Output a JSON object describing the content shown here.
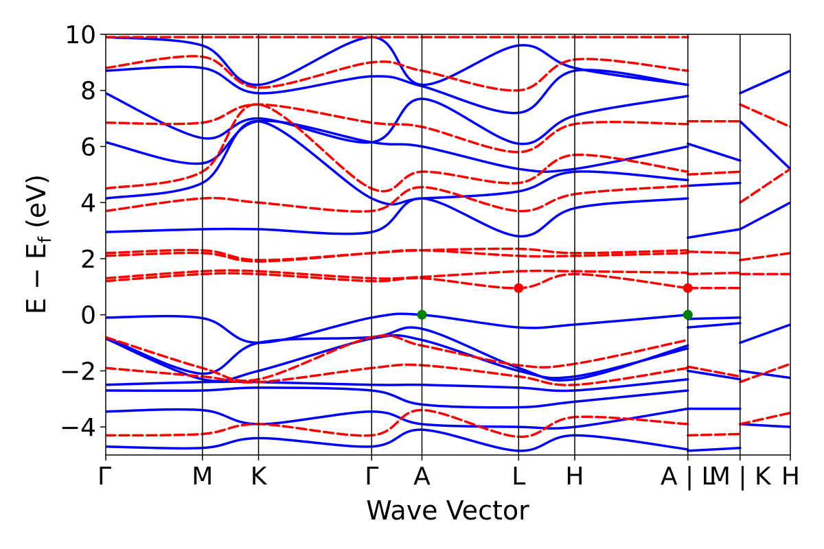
{
  "chart_data": {
    "type": "line",
    "xlabel": "Wave Vector",
    "ylabel": "E − E",
    "ylabel_subscript": "f",
    "ylabel_unit": " (eV)",
    "ylim": [
      -5,
      10
    ],
    "yticks": [
      -4,
      -2,
      0,
      2,
      4,
      6,
      8,
      10
    ],
    "ytick_labels": [
      "−4",
      "−2",
      "0",
      "2",
      "4",
      "6",
      "8",
      "10"
    ],
    "kpath": [
      {
        "label": "Γ",
        "x": 0.0
      },
      {
        "label": "M",
        "x": 1.0
      },
      {
        "label": "K",
        "x": 1.58
      },
      {
        "label": "Γ",
        "x": 2.75
      },
      {
        "label": "A",
        "x": 3.27
      },
      {
        "label": "L",
        "x": 4.27
      },
      {
        "label": "H",
        "x": 4.85
      },
      {
        "label": "A | L",
        "x": 6.02
      },
      {
        "label": "M | K",
        "x": 6.56
      },
      {
        "label": "H",
        "x": 7.08
      }
    ],
    "xlim": [
      0.0,
      7.08
    ],
    "grid": false,
    "series": [
      {
        "style": "solid",
        "color": "#0000ff",
        "bands": [
          {
            "x": [
              0,
              1.0,
              1.58,
              2.75,
              3.27,
              4.27,
              4.85,
              6.02
            ],
            "y": [
              -0.1,
              -0.12,
              -1.0,
              -0.1,
              0.0,
              -0.45,
              -0.35,
              0.0
            ]
          },
          {
            "x": [
              0,
              1.0,
              1.58,
              2.75,
              3.27,
              4.27,
              4.85,
              6.02
            ],
            "y": [
              -0.8,
              -2.1,
              -1.0,
              -0.8,
              -0.5,
              -1.9,
              -2.3,
              -1.1
            ]
          },
          {
            "x": [
              0,
              1.0,
              1.58,
              2.75,
              3.27,
              4.27,
              4.85,
              6.02
            ],
            "y": [
              -0.85,
              -2.3,
              -2.0,
              -0.85,
              -0.9,
              -2.0,
              -2.2,
              -1.2
            ]
          },
          {
            "x": [
              0,
              1.0,
              1.58,
              2.75,
              3.27,
              4.27,
              4.85,
              6.02
            ],
            "y": [
              -2.5,
              -2.4,
              -2.4,
              -2.5,
              -2.5,
              -2.6,
              -2.7,
              -2.3
            ]
          },
          {
            "x": [
              0,
              1.0,
              1.58,
              2.75,
              3.27,
              4.27,
              4.85,
              6.02
            ],
            "y": [
              -2.7,
              -2.7,
              -2.6,
              -2.7,
              -3.2,
              -3.3,
              -3.1,
              -2.7
            ]
          },
          {
            "x": [
              0,
              1.0,
              1.58,
              2.75,
              3.27,
              4.27,
              4.85,
              6.02
            ],
            "y": [
              -3.45,
              -3.4,
              -3.9,
              -3.45,
              -3.9,
              -4.0,
              -4.0,
              -3.35
            ]
          },
          {
            "x": [
              0,
              1.0,
              1.58,
              2.75,
              3.27,
              4.27,
              4.85,
              6.02
            ],
            "y": [
              -4.7,
              -4.75,
              -4.4,
              -4.7,
              -4.1,
              -4.85,
              -4.3,
              -4.8
            ]
          },
          {
            "x": [
              0,
              1.0,
              1.58,
              2.75,
              3.27,
              4.27,
              4.85,
              6.02
            ],
            "y": [
              2.95,
              3.05,
              3.05,
              2.95,
              4.15,
              2.8,
              3.8,
              4.15
            ]
          },
          {
            "x": [
              0,
              1.0,
              1.58,
              2.75,
              3.27,
              4.27,
              4.85,
              6.02
            ],
            "y": [
              4.15,
              4.7,
              6.9,
              4.15,
              4.15,
              4.4,
              5.1,
              4.8
            ]
          },
          {
            "x": [
              0,
              1.0,
              1.58,
              2.75,
              3.27,
              4.27,
              4.85,
              6.02
            ],
            "y": [
              6.15,
              5.4,
              6.9,
              6.15,
              6.0,
              5.2,
              5.2,
              6.0
            ]
          },
          {
            "x": [
              0,
              1.0,
              1.58,
              2.75,
              3.27,
              4.27,
              4.85,
              6.02
            ],
            "y": [
              7.9,
              6.3,
              7.0,
              6.15,
              7.7,
              6.1,
              7.1,
              7.8
            ]
          },
          {
            "x": [
              0,
              1.0,
              1.58,
              2.75,
              3.27,
              4.27,
              4.85,
              6.02
            ],
            "y": [
              8.7,
              8.8,
              7.9,
              8.5,
              8.15,
              7.2,
              8.7,
              8.2
            ]
          },
          {
            "x": [
              0,
              1.0,
              1.58,
              2.75,
              3.27,
              4.27,
              4.85,
              6.02
            ],
            "y": [
              9.9,
              9.6,
              8.2,
              9.9,
              8.2,
              9.6,
              8.8,
              8.2
            ]
          },
          {
            "x": [
              6.02,
              6.56
            ],
            "y": [
              -0.15,
              -0.1
            ]
          },
          {
            "x": [
              6.02,
              6.56
            ],
            "y": [
              -0.45,
              -0.3
            ]
          },
          {
            "x": [
              6.02,
              6.56
            ],
            "y": [
              -2.0,
              -2.3
            ]
          },
          {
            "x": [
              6.02,
              6.56
            ],
            "y": [
              -3.35,
              -3.35
            ]
          },
          {
            "x": [
              6.02,
              6.56
            ],
            "y": [
              -4.85,
              -4.75
            ]
          },
          {
            "x": [
              6.02,
              6.56
            ],
            "y": [
              2.75,
              3.05
            ]
          },
          {
            "x": [
              6.02,
              6.56
            ],
            "y": [
              4.6,
              4.7
            ]
          },
          {
            "x": [
              6.02,
              6.56
            ],
            "y": [
              6.1,
              5.5
            ]
          },
          {
            "x": [
              6.56,
              7.08
            ],
            "y": [
              -1.0,
              -0.35
            ]
          },
          {
            "x": [
              6.56,
              7.08
            ],
            "y": [
              -2.0,
              -2.25
            ]
          },
          {
            "x": [
              6.56,
              7.08
            ],
            "y": [
              -3.9,
              -4.0
            ]
          },
          {
            "x": [
              6.56,
              7.08
            ],
            "y": [
              3.05,
              4.0
            ]
          },
          {
            "x": [
              6.56,
              7.08
            ],
            "y": [
              6.9,
              5.2
            ]
          },
          {
            "x": [
              6.56,
              7.08
            ],
            "y": [
              7.9,
              8.7
            ]
          }
        ]
      },
      {
        "style": "dashed",
        "color": "#ff0000",
        "bands": [
          {
            "x": [
              0,
              1.0,
              1.58,
              2.75,
              3.27,
              4.27,
              4.85,
              6.02
            ],
            "y": [
              1.2,
              1.45,
              1.45,
              1.2,
              1.3,
              0.95,
              1.45,
              0.95
            ]
          },
          {
            "x": [
              0,
              1.0,
              1.58,
              2.75,
              3.27,
              4.27,
              4.85,
              6.02
            ],
            "y": [
              1.3,
              1.55,
              1.55,
              1.3,
              1.35,
              1.55,
              1.55,
              1.5
            ]
          },
          {
            "x": [
              0,
              1.0,
              1.58,
              2.75,
              3.27,
              4.27,
              4.85,
              6.02
            ],
            "y": [
              2.1,
              2.2,
              1.9,
              2.2,
              2.3,
              2.1,
              2.1,
              2.2
            ]
          },
          {
            "x": [
              0,
              1.0,
              1.58,
              2.75,
              3.27,
              4.27,
              4.85,
              6.02
            ],
            "y": [
              2.2,
              2.3,
              1.95,
              2.2,
              2.3,
              2.35,
              2.2,
              2.3
            ]
          },
          {
            "x": [
              0,
              1.0,
              1.58,
              2.75,
              3.27,
              4.27,
              4.85,
              6.02
            ],
            "y": [
              -0.8,
              -1.9,
              -2.3,
              -0.8,
              -1.1,
              -1.8,
              -1.75,
              -0.9
            ]
          },
          {
            "x": [
              0,
              1.0,
              1.58,
              2.75,
              3.27,
              4.27,
              4.85,
              6.02
            ],
            "y": [
              -1.9,
              -2.2,
              -2.4,
              -1.9,
              -1.8,
              -2.2,
              -2.5,
              -1.9
            ]
          },
          {
            "x": [
              0,
              1.0,
              1.58,
              2.75,
              3.27,
              4.27,
              4.85,
              6.02
            ],
            "y": [
              -4.3,
              -4.25,
              -3.9,
              -4.3,
              -3.4,
              -4.35,
              -3.65,
              -3.9
            ]
          },
          {
            "x": [
              0,
              1.0,
              1.58,
              2.75,
              3.27,
              4.27,
              4.85,
              6.02
            ],
            "y": [
              3.7,
              4.15,
              4.0,
              3.7,
              4.55,
              3.7,
              4.3,
              4.6
            ]
          },
          {
            "x": [
              0,
              1.0,
              1.58,
              2.75,
              3.27,
              4.27,
              4.85,
              6.02
            ],
            "y": [
              4.5,
              5.1,
              7.5,
              4.5,
              5.1,
              4.7,
              5.7,
              5.1
            ]
          },
          {
            "x": [
              0,
              1.0,
              1.58,
              2.75,
              3.27,
              4.27,
              4.85,
              6.02
            ],
            "y": [
              6.85,
              6.85,
              7.5,
              6.85,
              6.7,
              5.8,
              6.8,
              6.8
            ]
          },
          {
            "x": [
              0,
              1.0,
              1.58,
              2.75,
              3.27,
              4.27,
              4.85,
              6.02
            ],
            "y": [
              8.8,
              9.2,
              8.1,
              9.0,
              8.7,
              8.0,
              9.1,
              8.7
            ]
          },
          {
            "x": [
              0,
              1.0,
              1.58,
              2.75,
              3.27,
              4.27,
              4.85,
              6.02
            ],
            "y": [
              9.9,
              9.9,
              9.9,
              9.9,
              9.9,
              9.9,
              9.9,
              9.9
            ]
          },
          {
            "x": [
              6.02,
              6.56
            ],
            "y": [
              0.95,
              0.95
            ]
          },
          {
            "x": [
              6.02,
              6.56
            ],
            "y": [
              1.45,
              1.5
            ]
          },
          {
            "x": [
              6.02,
              6.56
            ],
            "y": [
              2.25,
              2.2
            ]
          },
          {
            "x": [
              6.02,
              6.56
            ],
            "y": [
              -1.85,
              -2.2
            ]
          },
          {
            "x": [
              6.02,
              6.56
            ],
            "y": [
              -4.3,
              -4.25
            ]
          },
          {
            "x": [
              6.02,
              6.56
            ],
            "y": [
              5.0,
              5.1
            ]
          },
          {
            "x": [
              6.02,
              6.56
            ],
            "y": [
              6.9,
              6.9
            ]
          },
          {
            "x": [
              6.56,
              7.08
            ],
            "y": [
              1.45,
              1.45
            ]
          },
          {
            "x": [
              6.56,
              7.08
            ],
            "y": [
              1.95,
              2.2
            ]
          },
          {
            "x": [
              6.56,
              7.08
            ],
            "y": [
              -2.4,
              -1.75
            ]
          },
          {
            "x": [
              6.56,
              7.08
            ],
            "y": [
              -3.9,
              -3.5
            ]
          },
          {
            "x": [
              6.56,
              7.08
            ],
            "y": [
              4.0,
              5.2
            ]
          },
          {
            "x": [
              6.56,
              7.08
            ],
            "y": [
              7.5,
              6.7
            ]
          }
        ]
      }
    ],
    "markers": [
      {
        "x": 3.27,
        "y": 0.0,
        "color": "#008000"
      },
      {
        "x": 6.02,
        "y": 0.0,
        "color": "#008000"
      },
      {
        "x": 4.27,
        "y": 0.95,
        "color": "#ff0000"
      },
      {
        "x": 6.02,
        "y": 0.95,
        "color": "#ff0000"
      }
    ]
  }
}
